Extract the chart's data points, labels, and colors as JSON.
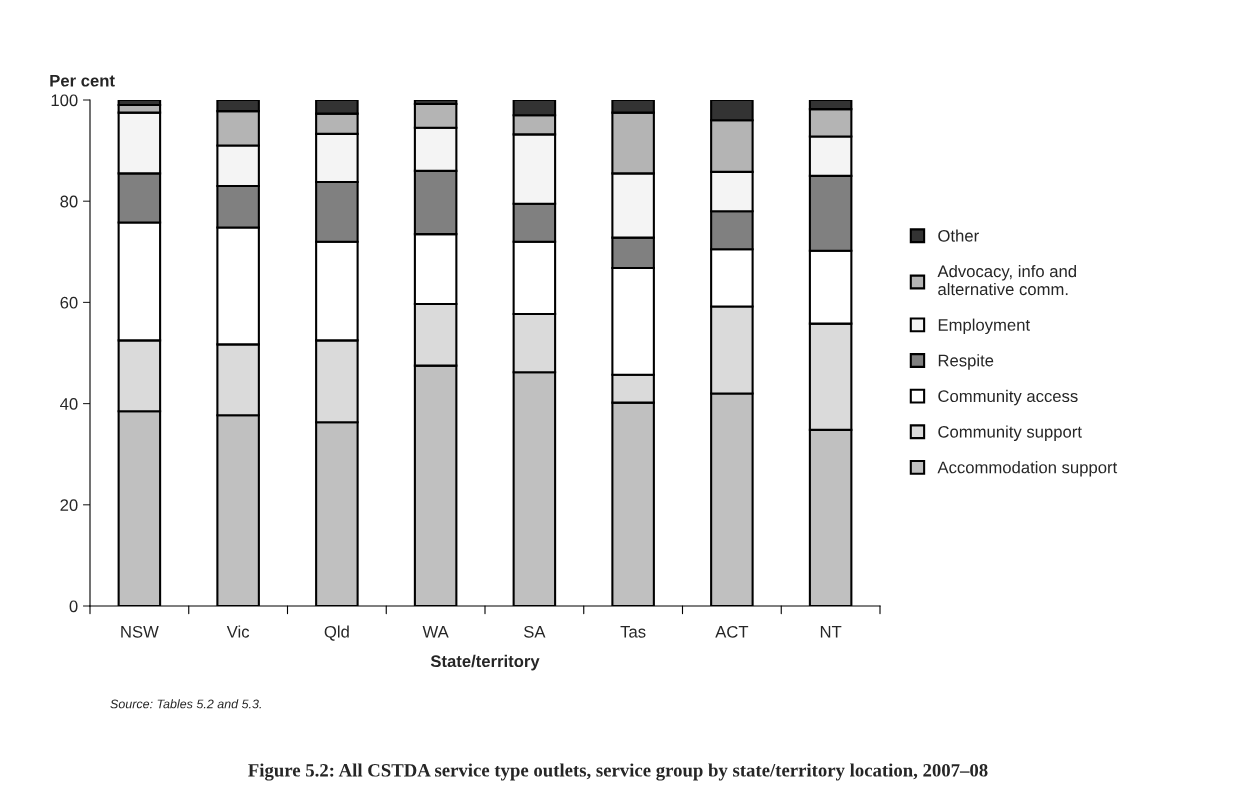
{
  "chart_data": {
    "type": "bar",
    "stacked": true,
    "title": "Figure 5.2: All CSTDA service type outlets, service group by state/territory location, 2007–08",
    "xlabel": "State/territory",
    "ylabel": "Per cent",
    "categories": [
      "NSW",
      "Vic",
      "Qld",
      "WA",
      "SA",
      "Tas",
      "ACT",
      "NT"
    ],
    "series": [
      {
        "name": "Accommodation support",
        "color": "#c0c0c0",
        "values": [
          38.5,
          37.7,
          36.3,
          47.5,
          46.2,
          40.2,
          42,
          34.8
        ]
      },
      {
        "name": "Community support",
        "color": "#dadada",
        "values": [
          14,
          14,
          16.2,
          12.2,
          11.5,
          5.5,
          17.2,
          21
        ]
      },
      {
        "name": "Community access",
        "color": "#ffffff",
        "values": [
          23.3,
          23.1,
          19.5,
          13.8,
          14.3,
          21.1,
          11.3,
          14.4
        ]
      },
      {
        "name": "Respite",
        "color": "#808080",
        "values": [
          9.7,
          8.2,
          11.8,
          12.5,
          7.5,
          6,
          7.5,
          14.8
        ]
      },
      {
        "name": "Employment",
        "color": "#f4f4f4",
        "values": [
          12,
          8,
          9.5,
          8.5,
          13.7,
          12.7,
          7.8,
          7.8
        ]
      },
      {
        "name": "Advocacy, info and\nalternative comm.",
        "color": "#b4b4b4",
        "values": [
          1.5,
          6.8,
          4,
          4.7,
          3.8,
          12,
          10.2,
          5.4
        ]
      },
      {
        "name": "Other",
        "color": "#333333",
        "values": [
          1,
          2.2,
          2.7,
          0.8,
          3,
          2.5,
          4,
          1.8
        ]
      }
    ],
    "ylim": [
      0,
      100
    ],
    "yticks": [
      0,
      20,
      40,
      60,
      80,
      100
    ],
    "grid": false,
    "legend": "right",
    "annotations": [
      "Source: Tables 5.2 and 5.3."
    ]
  }
}
